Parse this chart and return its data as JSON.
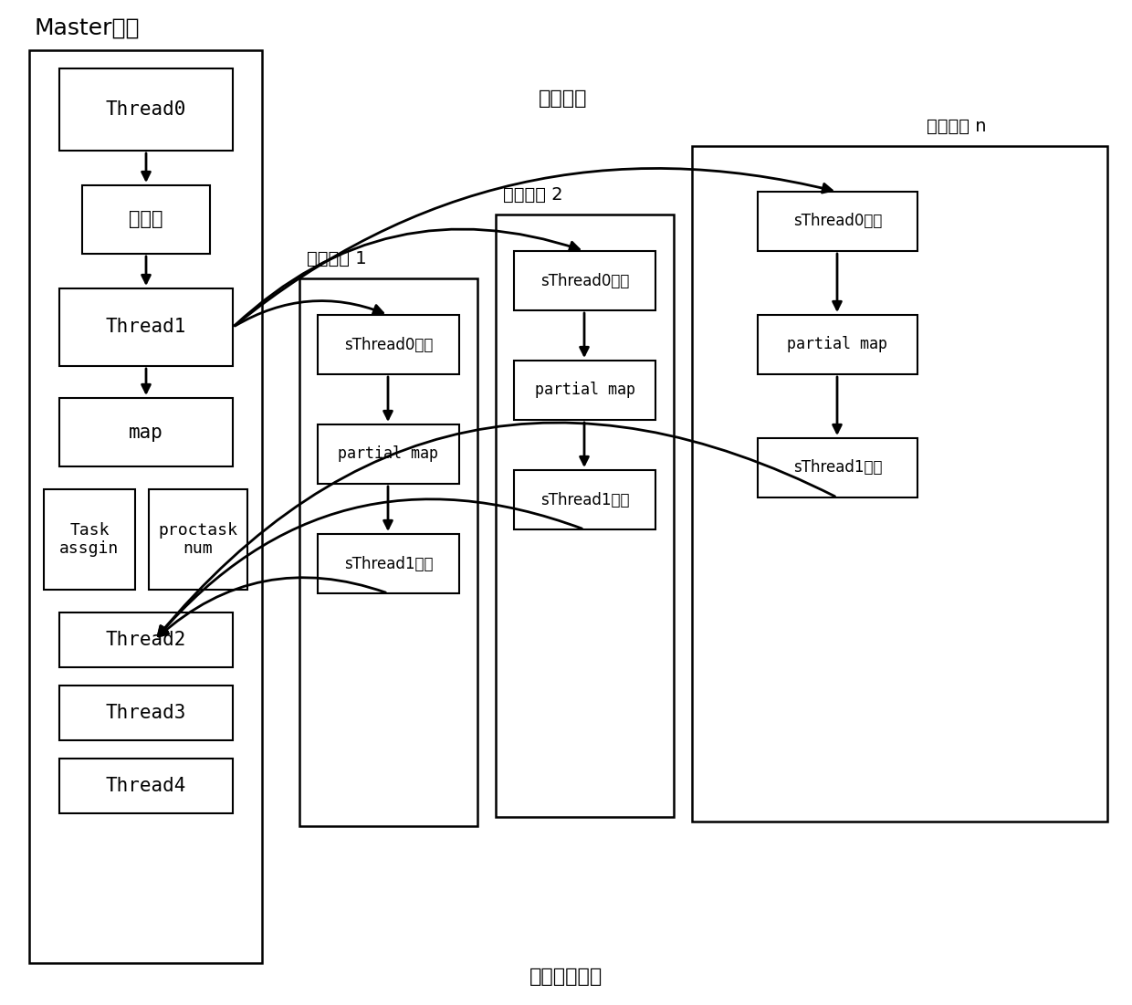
{
  "master_label": "Master节点",
  "compute_node1_label": "计算节点 1",
  "compute_node2_label": "计算节点 2",
  "compute_node_n_label": "计算节点 n",
  "send_data_label": "发送数据",
  "return_data_label": "返回计算结果",
  "buf_label": "缓冲区",
  "sthread0_label": "sThread0计算",
  "sthread1_label": "sThread1计算",
  "partial_map_label": "partial map"
}
